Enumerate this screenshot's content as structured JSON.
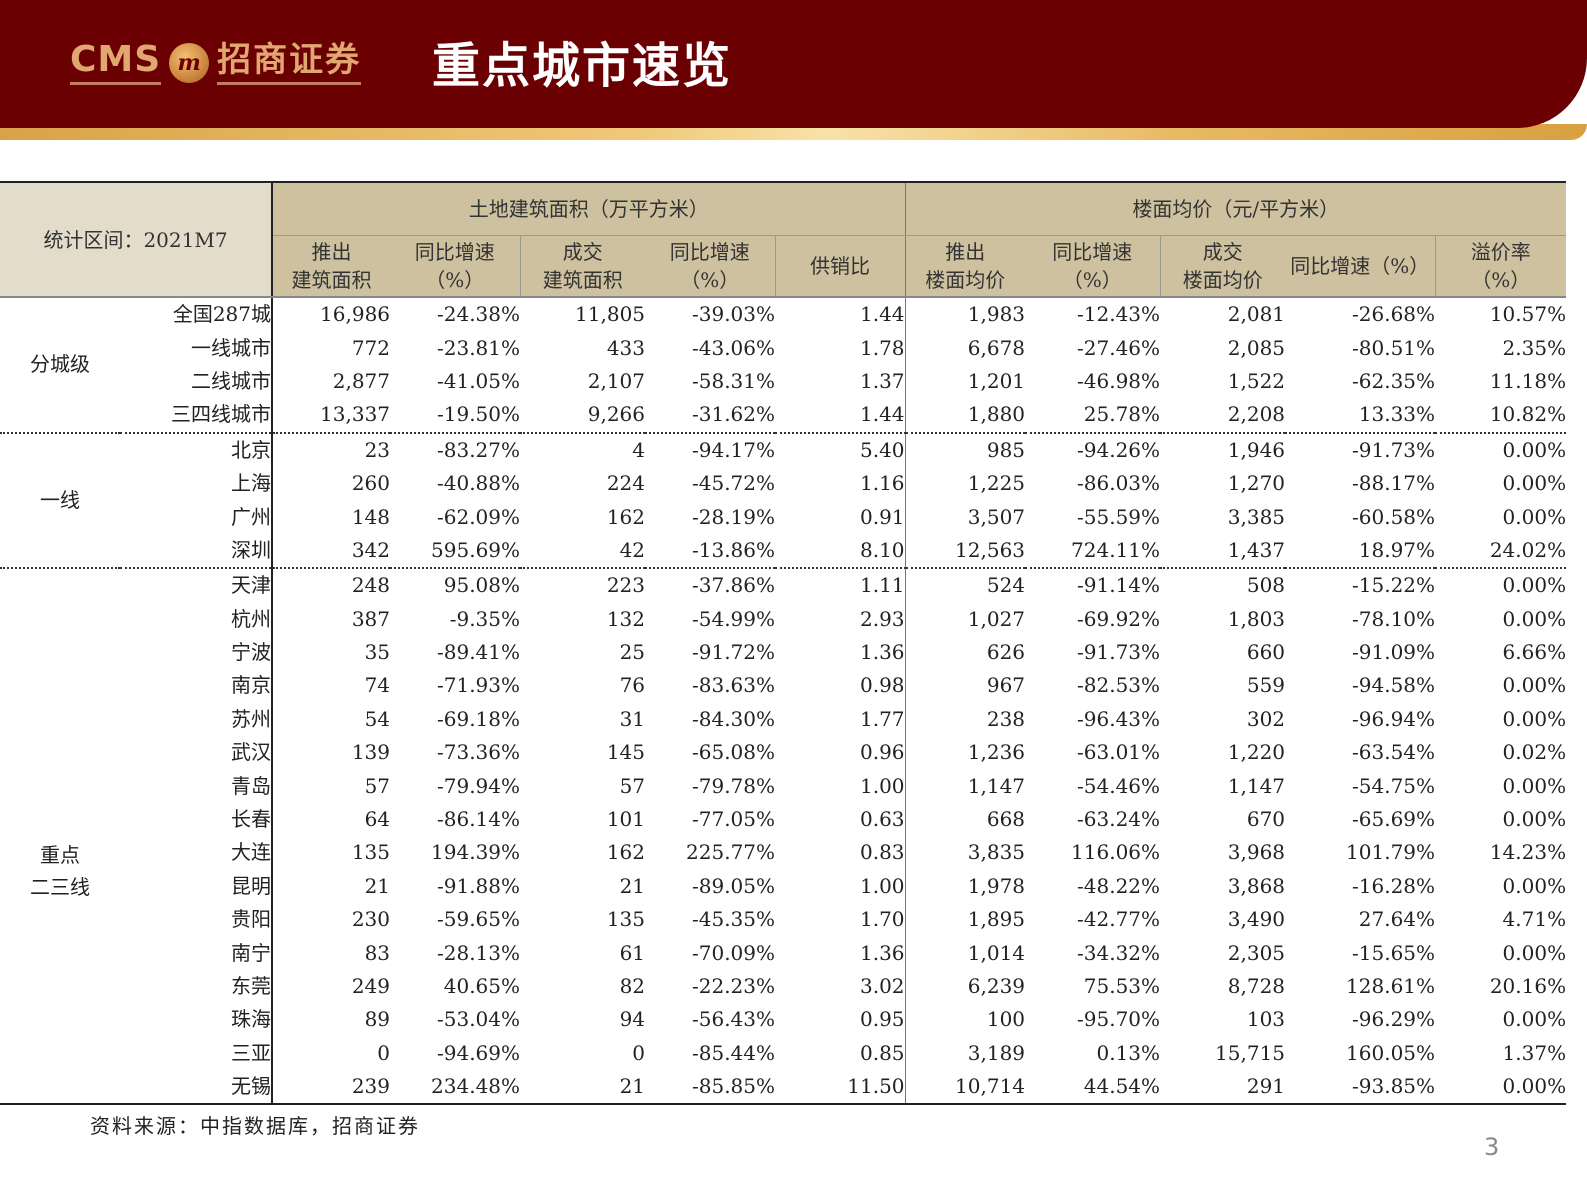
{
  "header": {
    "logo_text": "CMS",
    "logo_mark": "m",
    "logo_cn": "招商证券",
    "title": "重点城市速览"
  },
  "table": {
    "corner_label": "统计区间：2021M7",
    "group_headers": [
      "土地建筑面积（万平方米）",
      "楼面均价（元/平方米）"
    ],
    "columns": [
      {
        "line1": "推出",
        "line2": "建筑面积"
      },
      {
        "line1": "同比增速",
        "line2": "（%）"
      },
      {
        "line1": "成交",
        "line2": "建筑面积"
      },
      {
        "line1": "同比增速",
        "line2": "（%）"
      },
      {
        "line1": "供销比",
        "line2": ""
      },
      {
        "line1": "推出",
        "line2": "楼面均价"
      },
      {
        "line1": "同比增速",
        "line2": "（%）"
      },
      {
        "line1": "成交",
        "line2": "楼面均价"
      },
      {
        "line1": "同比增速（%）",
        "line2": ""
      },
      {
        "line1": "溢价率",
        "line2": "（%）"
      }
    ],
    "categories": [
      {
        "label": "分城级",
        "label2": ""
      },
      {
        "label": "一线",
        "label2": ""
      },
      {
        "label": "重点",
        "label2": "二三线"
      }
    ],
    "rows": [
      {
        "city": "全国287城",
        "v": [
          "16,986",
          "-24.38%",
          "11,805",
          "-39.03%",
          "1.44",
          "1,983",
          "-12.43%",
          "2,081",
          "-26.68%",
          "10.57%"
        ]
      },
      {
        "city": "一线城市",
        "v": [
          "772",
          "-23.81%",
          "433",
          "-43.06%",
          "1.78",
          "6,678",
          "-27.46%",
          "2,085",
          "-80.51%",
          "2.35%"
        ]
      },
      {
        "city": "二线城市",
        "v": [
          "2,877",
          "-41.05%",
          "2,107",
          "-58.31%",
          "1.37",
          "1,201",
          "-46.98%",
          "1,522",
          "-62.35%",
          "11.18%"
        ]
      },
      {
        "city": "三四线城市",
        "v": [
          "13,337",
          "-19.50%",
          "9,266",
          "-31.62%",
          "1.44",
          "1,880",
          "25.78%",
          "2,208",
          "13.33%",
          "10.82%"
        ]
      },
      {
        "city": "北京",
        "v": [
          "23",
          "-83.27%",
          "4",
          "-94.17%",
          "5.40",
          "985",
          "-94.26%",
          "1,946",
          "-91.73%",
          "0.00%"
        ]
      },
      {
        "city": "上海",
        "v": [
          "260",
          "-40.88%",
          "224",
          "-45.72%",
          "1.16",
          "1,225",
          "-86.03%",
          "1,270",
          "-88.17%",
          "0.00%"
        ]
      },
      {
        "city": "广州",
        "v": [
          "148",
          "-62.09%",
          "162",
          "-28.19%",
          "0.91",
          "3,507",
          "-55.59%",
          "3,385",
          "-60.58%",
          "0.00%"
        ]
      },
      {
        "city": "深圳",
        "v": [
          "342",
          "595.69%",
          "42",
          "-13.86%",
          "8.10",
          "12,563",
          "724.11%",
          "1,437",
          "18.97%",
          "24.02%"
        ]
      },
      {
        "city": "天津",
        "v": [
          "248",
          "95.08%",
          "223",
          "-37.86%",
          "1.11",
          "524",
          "-91.14%",
          "508",
          "-15.22%",
          "0.00%"
        ]
      },
      {
        "city": "杭州",
        "v": [
          "387",
          "-9.35%",
          "132",
          "-54.99%",
          "2.93",
          "1,027",
          "-69.92%",
          "1,803",
          "-78.10%",
          "0.00%"
        ]
      },
      {
        "city": "宁波",
        "v": [
          "35",
          "-89.41%",
          "25",
          "-91.72%",
          "1.36",
          "626",
          "-91.73%",
          "660",
          "-91.09%",
          "6.66%"
        ]
      },
      {
        "city": "南京",
        "v": [
          "74",
          "-71.93%",
          "76",
          "-83.63%",
          "0.98",
          "967",
          "-82.53%",
          "559",
          "-94.58%",
          "0.00%"
        ]
      },
      {
        "city": "苏州",
        "v": [
          "54",
          "-69.18%",
          "31",
          "-84.30%",
          "1.77",
          "238",
          "-96.43%",
          "302",
          "-96.94%",
          "0.00%"
        ]
      },
      {
        "city": "武汉",
        "v": [
          "139",
          "-73.36%",
          "145",
          "-65.08%",
          "0.96",
          "1,236",
          "-63.01%",
          "1,220",
          "-63.54%",
          "0.02%"
        ]
      },
      {
        "city": "青岛",
        "v": [
          "57",
          "-79.94%",
          "57",
          "-79.78%",
          "1.00",
          "1,147",
          "-54.46%",
          "1,147",
          "-54.75%",
          "0.00%"
        ]
      },
      {
        "city": "长春",
        "v": [
          "64",
          "-86.14%",
          "101",
          "-77.05%",
          "0.63",
          "668",
          "-63.24%",
          "670",
          "-65.69%",
          "0.00%"
        ]
      },
      {
        "city": "大连",
        "v": [
          "135",
          "194.39%",
          "162",
          "225.77%",
          "0.83",
          "3,835",
          "116.06%",
          "3,968",
          "101.79%",
          "14.23%"
        ]
      },
      {
        "city": "昆明",
        "v": [
          "21",
          "-91.88%",
          "21",
          "-89.05%",
          "1.00",
          "1,978",
          "-48.22%",
          "3,868",
          "-16.28%",
          "0.00%"
        ]
      },
      {
        "city": "贵阳",
        "v": [
          "230",
          "-59.65%",
          "135",
          "-45.35%",
          "1.70",
          "1,895",
          "-42.77%",
          "3,490",
          "27.64%",
          "4.71%"
        ]
      },
      {
        "city": "南宁",
        "v": [
          "83",
          "-28.13%",
          "61",
          "-70.09%",
          "1.36",
          "1,014",
          "-34.32%",
          "2,305",
          "-15.65%",
          "0.00%"
        ]
      },
      {
        "city": "东莞",
        "v": [
          "249",
          "40.65%",
          "82",
          "-22.23%",
          "3.02",
          "6,239",
          "75.53%",
          "8,728",
          "128.61%",
          "20.16%"
        ]
      },
      {
        "city": "珠海",
        "v": [
          "89",
          "-53.04%",
          "94",
          "-56.43%",
          "0.95",
          "100",
          "-95.70%",
          "103",
          "-96.29%",
          "0.00%"
        ]
      },
      {
        "city": "三亚",
        "v": [
          "0",
          "-94.69%",
          "0",
          "-85.44%",
          "0.85",
          "3,189",
          "0.13%",
          "15,715",
          "160.05%",
          "1.37%"
        ]
      },
      {
        "city": "无锡",
        "v": [
          "239",
          "234.48%",
          "21",
          "-85.85%",
          "11.50",
          "10,714",
          "44.54%",
          "291",
          "-93.85%",
          "0.00%"
        ]
      }
    ]
  },
  "footer": {
    "source": "资料来源：中指数据库，招商证券",
    "page_number": "3"
  },
  "colors": {
    "banner_red": "#6b0003",
    "gold": "#e0a870",
    "header_bg": "#cec19f",
    "corner_bg": "#e4dccb"
  }
}
